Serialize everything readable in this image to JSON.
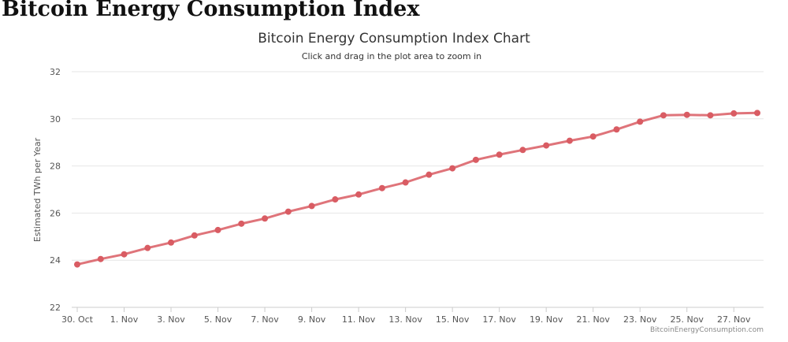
{
  "page": {
    "heading": "Bitcoin Energy Consumption Index"
  },
  "chart_data": {
    "type": "line",
    "title": "Bitcoin Energy Consumption Index Chart",
    "subtitle": "Click and drag in the plot area to zoom in",
    "xlabel": "",
    "ylabel": "Estimated TWh per Year",
    "credit": "BitcoinEnergyConsumption.com",
    "ylim": [
      22,
      32
    ],
    "yticks": [
      22,
      24,
      26,
      28,
      30,
      32
    ],
    "grid": true,
    "legend": "none",
    "line_color": "#d95c63",
    "x": [
      "30. Oct",
      "31. Oct",
      "1. Nov",
      "2. Nov",
      "3. Nov",
      "4. Nov",
      "5. Nov",
      "6. Nov",
      "7. Nov",
      "8. Nov",
      "9. Nov",
      "10. Nov",
      "11. Nov",
      "12. Nov",
      "13. Nov",
      "14. Nov",
      "15. Nov",
      "16. Nov",
      "17. Nov",
      "18. Nov",
      "19. Nov",
      "20. Nov",
      "21. Nov",
      "22. Nov",
      "23. Nov",
      "24. Nov",
      "25. Nov",
      "26. Nov",
      "27. Nov",
      "28. Nov"
    ],
    "xtick_labels": [
      "30. Oct",
      "1. Nov",
      "3. Nov",
      "5. Nov",
      "7. Nov",
      "9. Nov",
      "11. Nov",
      "13. Nov",
      "15. Nov",
      "17. Nov",
      "19. Nov",
      "21. Nov",
      "23. Nov",
      "25. Nov",
      "27. Nov"
    ],
    "series": [
      {
        "values": [
          23.82,
          24.05,
          24.25,
          24.52,
          24.75,
          25.05,
          25.28,
          25.55,
          25.77,
          26.06,
          26.3,
          26.58,
          26.79,
          27.06,
          27.3,
          27.63,
          27.9,
          28.26,
          28.48,
          28.68,
          28.87,
          29.07,
          29.25,
          29.55,
          29.88,
          30.15,
          30.17,
          30.15,
          30.23,
          30.25
        ]
      }
    ]
  }
}
